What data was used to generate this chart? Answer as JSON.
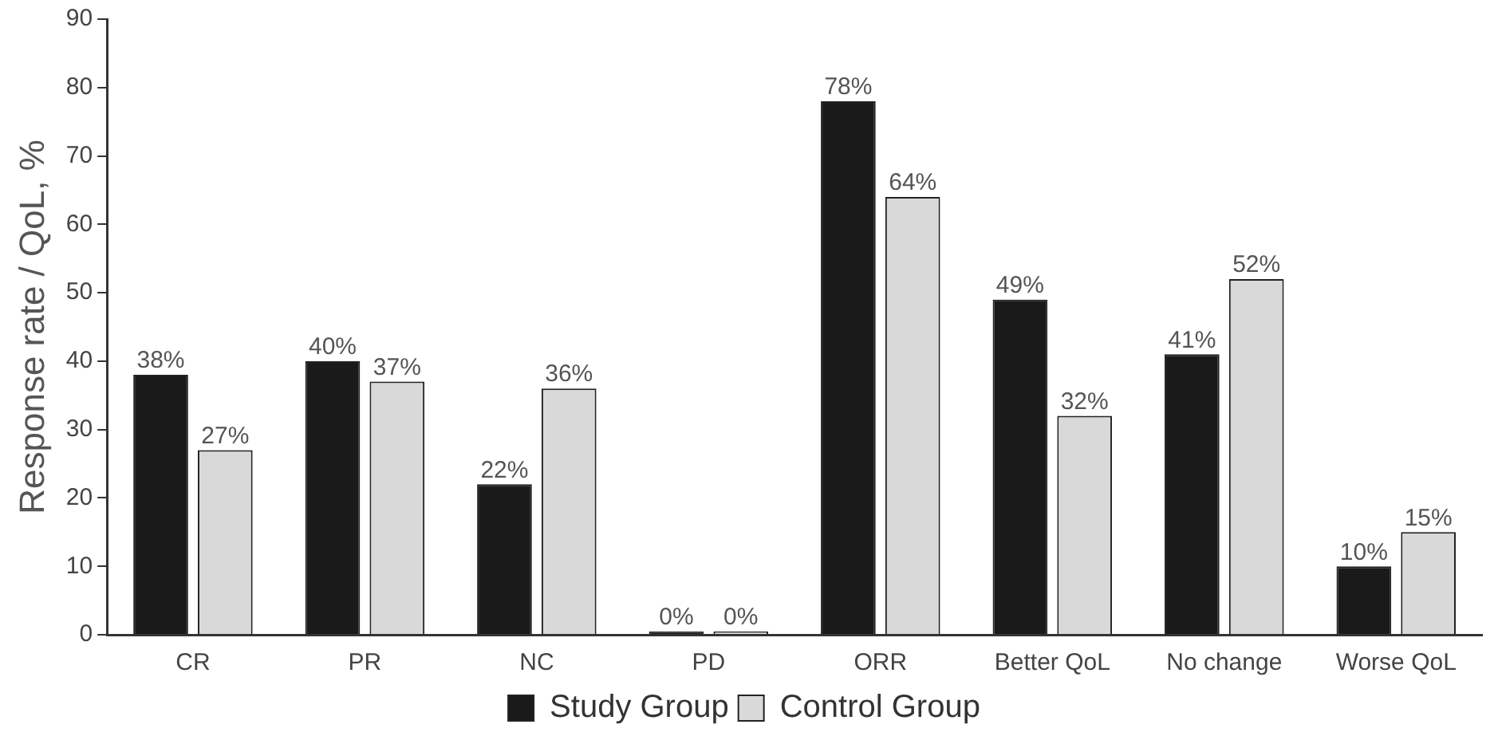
{
  "chart_data": {
    "type": "bar",
    "ylabel": "Response rate / QoL, %",
    "categories": [
      "CR",
      "PR",
      "NC",
      "PD",
      "ORR",
      "Better QoL",
      "No change",
      "Worse QoL"
    ],
    "series": [
      {
        "name": "Study Group",
        "color": "#1a1a1a",
        "values": [
          38,
          40,
          22,
          0,
          78,
          49,
          41,
          10
        ],
        "value_labels": [
          "38%",
          "40%",
          "22%",
          "0%",
          "78%",
          "49%",
          "41%",
          "10%"
        ]
      },
      {
        "name": "Control Group",
        "color": "#d9d9d9",
        "values": [
          27,
          37,
          36,
          0,
          64,
          32,
          52,
          15
        ],
        "value_labels": [
          "27%",
          "37%",
          "36%",
          "0%",
          "64%",
          "32%",
          "52%",
          "15%"
        ]
      }
    ],
    "ylim": [
      0,
      90
    ],
    "yticks": [
      0,
      10,
      20,
      30,
      40,
      50,
      60,
      70,
      80,
      90
    ],
    "grid": false,
    "legend": "bottom"
  }
}
